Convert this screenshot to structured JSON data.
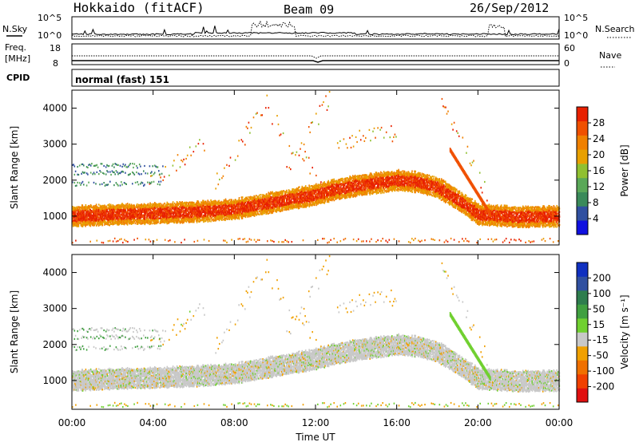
{
  "header": {
    "station": "Hokkaido (fitACF)",
    "beam": "Beam 09",
    "date": "26/Sep/2012"
  },
  "top_strip": {
    "left_label": "N.Sky",
    "right_label": "N.Search",
    "left_ticks": [
      "10^5",
      "10^0"
    ],
    "right_ticks": [
      "10^5",
      "10^0"
    ]
  },
  "freq_strip": {
    "left_label": "Freq.",
    "left_unit": "[MHz]",
    "right_label": "Nave",
    "left_ticks": [
      "18",
      "8"
    ],
    "right_ticks": [
      "60",
      "0"
    ]
  },
  "cpid": {
    "label": "CPID",
    "value": "normal (fast) 151"
  },
  "colors": {
    "power_scale": [
      "#1010e0",
      "#3050a0",
      "#3a8a5a",
      "#5aa858",
      "#90c030",
      "#e8a000",
      "#f08000",
      "#f05000",
      "#e82000"
    ],
    "velocity_scale": [
      "#1030c0",
      "#3050a0",
      "#2e7d4e",
      "#40a040",
      "#70d030",
      "#c8c8c8",
      "#f0a000",
      "#f07000",
      "#f04000",
      "#e01010"
    ],
    "background_scatter": "#c8c8c8"
  },
  "chart_data": [
    {
      "type": "heatmap",
      "title": "",
      "panel": "power",
      "xlabel": "Time UT",
      "ylabel": "Slant Range [km]",
      "xlim": [
        "00:00",
        "24:00"
      ],
      "ylim": [
        200,
        4500
      ],
      "x_tick_labels": [
        "00:00",
        "04:00",
        "08:00",
        "12:00",
        "16:00",
        "20:00",
        "00:00"
      ],
      "y_tick_labels": [
        "1000",
        "2000",
        "3000",
        "4000"
      ],
      "y_tick_values": [
        1000,
        2000,
        3000,
        4000
      ],
      "colorbar": {
        "label": "Power [dB]",
        "tick_labels": [
          "4",
          "8",
          "12",
          "16",
          "20",
          "24",
          "28"
        ],
        "tick_values": [
          4,
          8,
          12,
          16,
          20,
          24,
          28
        ],
        "range": [
          0,
          32
        ]
      },
      "main_echo_band": {
        "hours": [
          0,
          2,
          4,
          6,
          8,
          10,
          12,
          13,
          14,
          16,
          17,
          18,
          19,
          20,
          22,
          24
        ],
        "range_center_km": [
          1000,
          1050,
          1080,
          1120,
          1200,
          1400,
          1600,
          1750,
          1850,
          2000,
          1950,
          1800,
          1450,
          1050,
          980,
          1000
        ]
      }
    },
    {
      "type": "heatmap",
      "title": "",
      "panel": "velocity",
      "xlabel": "Time UT",
      "ylabel": "Slant Range [km]",
      "xlim": [
        "00:00",
        "24:00"
      ],
      "ylim": [
        200,
        4500
      ],
      "x_tick_labels": [
        "00:00",
        "04:00",
        "08:00",
        "12:00",
        "16:00",
        "20:00",
        "00:00"
      ],
      "y_tick_labels": [
        "1000",
        "2000",
        "3000",
        "4000"
      ],
      "y_tick_values": [
        1000,
        2000,
        3000,
        4000
      ],
      "colorbar": {
        "label": "Velocity [m s⁻¹]",
        "tick_labels": [
          "200",
          "100",
          "50",
          "15",
          "-15",
          "-50",
          "-100",
          "-200"
        ]
      }
    }
  ]
}
